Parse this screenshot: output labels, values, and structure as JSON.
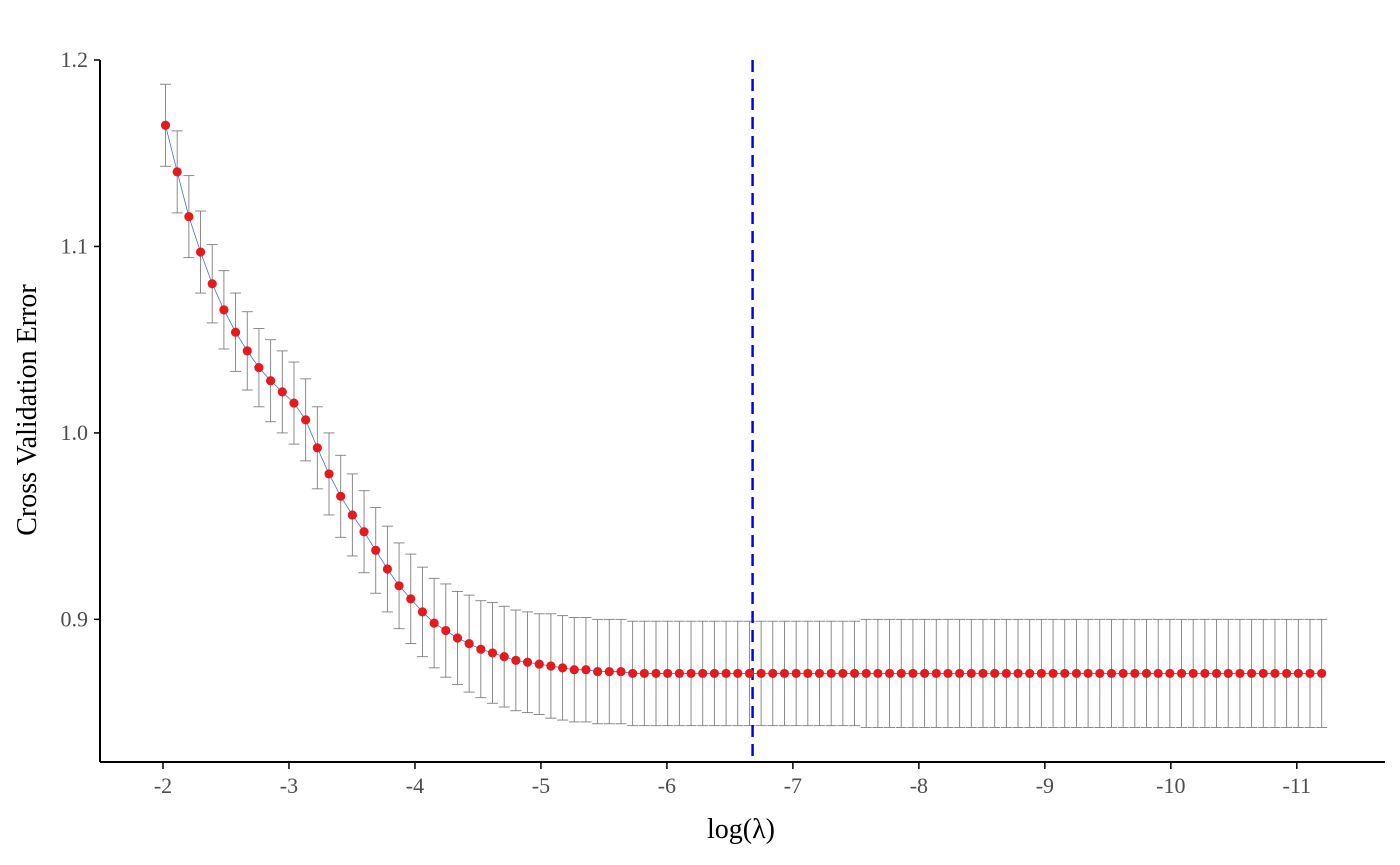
{
  "chart_data": {
    "type": "scatter",
    "title": "",
    "xlabel": "log(λ)",
    "ylabel": "Cross Validation Error",
    "xlim": [
      -1.5,
      -11.7
    ],
    "ylim": [
      0.8235,
      1.2
    ],
    "x_reversed": true,
    "x_ticks": [
      -2,
      -3,
      -4,
      -5,
      -6,
      -7,
      -8,
      -9,
      -10,
      -11
    ],
    "x_tick_labels": [
      "-2",
      "-3",
      "-4",
      "-5",
      "-6",
      "-7",
      "-8",
      "-9",
      "-10",
      "-11"
    ],
    "y_ticks": [
      0.9,
      1.0,
      1.1,
      1.2
    ],
    "y_tick_labels": [
      "0.9",
      "1.0",
      "1.1",
      "1.2"
    ],
    "grid": false,
    "legend": "none",
    "x_start": -2.02,
    "x_step": -0.0927,
    "cv_error": [
      1.165,
      1.14,
      1.116,
      1.097,
      1.08,
      1.066,
      1.054,
      1.044,
      1.035,
      1.028,
      1.022,
      1.016,
      1.007,
      0.992,
      0.978,
      0.966,
      0.956,
      0.947,
      0.937,
      0.927,
      0.918,
      0.911,
      0.904,
      0.898,
      0.894,
      0.89,
      0.887,
      0.884,
      0.882,
      0.88,
      0.878,
      0.877,
      0.876,
      0.875,
      0.874,
      0.873,
      0.873,
      0.872,
      0.872,
      0.872,
      0.871,
      0.871,
      0.871,
      0.871,
      0.871,
      0.871,
      0.871,
      0.871,
      0.871,
      0.871,
      0.871,
      0.871,
      0.871,
      0.871,
      0.871,
      0.871,
      0.871,
      0.871,
      0.871,
      0.871,
      0.871,
      0.871,
      0.871,
      0.871,
      0.871,
      0.871,
      0.871,
      0.871,
      0.871,
      0.871,
      0.871,
      0.871,
      0.871,
      0.871,
      0.871,
      0.871,
      0.871,
      0.871,
      0.871,
      0.871,
      0.871,
      0.871,
      0.871,
      0.871,
      0.871,
      0.871,
      0.871,
      0.871,
      0.871,
      0.871,
      0.871,
      0.871,
      0.871,
      0.871,
      0.871,
      0.871,
      0.871,
      0.871,
      0.871,
      0.871
    ],
    "error_bar": [
      0.022,
      0.022,
      0.022,
      0.022,
      0.021,
      0.021,
      0.021,
      0.021,
      0.021,
      0.022,
      0.022,
      0.022,
      0.022,
      0.022,
      0.022,
      0.022,
      0.022,
      0.022,
      0.023,
      0.023,
      0.023,
      0.024,
      0.024,
      0.024,
      0.025,
      0.025,
      0.026,
      0.026,
      0.027,
      0.027,
      0.027,
      0.027,
      0.027,
      0.028,
      0.028,
      0.028,
      0.028,
      0.028,
      0.028,
      0.028,
      0.028,
      0.028,
      0.028,
      0.028,
      0.028,
      0.028,
      0.028,
      0.028,
      0.028,
      0.028,
      0.028,
      0.028,
      0.028,
      0.028,
      0.028,
      0.028,
      0.028,
      0.028,
      0.028,
      0.028,
      0.029,
      0.029,
      0.029,
      0.029,
      0.029,
      0.029,
      0.029,
      0.029,
      0.029,
      0.029,
      0.029,
      0.029,
      0.029,
      0.029,
      0.029,
      0.029,
      0.029,
      0.029,
      0.029,
      0.029,
      0.029,
      0.029,
      0.029,
      0.029,
      0.029,
      0.029,
      0.029,
      0.029,
      0.029,
      0.029,
      0.029,
      0.029,
      0.029,
      0.029,
      0.029,
      0.029,
      0.029,
      0.029,
      0.029,
      0.029
    ],
    "reference_line_x": -6.68,
    "colors": {
      "point": "#e41a1c",
      "connector": "#4a6fd6",
      "error_bar": "#7f7f7f",
      "reference_line": "#0000ff",
      "axis": "#000000"
    }
  }
}
